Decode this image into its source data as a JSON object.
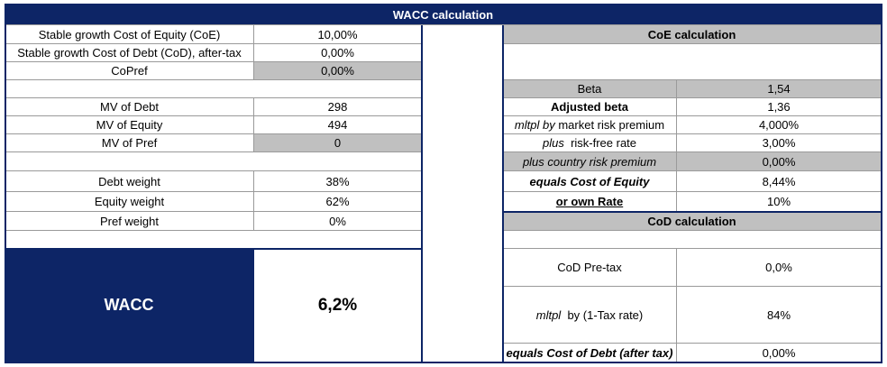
{
  "title": "WACC calculation",
  "left": {
    "rows": [
      {
        "label": "Stable growth Cost of Equity (CoE)",
        "value": "10,00%"
      },
      {
        "label": "Stable growth Cost of Debt (CoD), after-tax",
        "value": "0,00%"
      },
      {
        "label": "CoPref",
        "value": "0,00%"
      },
      {
        "label": "MV of Debt",
        "value": "298"
      },
      {
        "label": "MV of Equity",
        "value": "494"
      },
      {
        "label": "MV of Pref",
        "value": "0"
      },
      {
        "label": "Debt weight",
        "value": "38%"
      },
      {
        "label": "Equity weight",
        "value": "62%"
      },
      {
        "label": "Pref weight",
        "value": "0%"
      }
    ],
    "wacc_label": "WACC",
    "wacc_value": "6,2%"
  },
  "coe": {
    "header": "CoE calculation",
    "beta_label": "Beta",
    "beta_value": "1,54",
    "adj_beta_label": "Adjusted beta",
    "adj_beta_value": "1,36",
    "mrp_prefix": "mltpl by",
    "mrp_label": "market risk premium",
    "mrp_value": "4,000%",
    "rf_prefix": "plus",
    "rf_label": "risk-free rate",
    "rf_value": "3,00%",
    "crp_label": "plus country risk premium",
    "crp_value": "0,00%",
    "coe_label": "equals Cost of Equity",
    "coe_value": "8,44%",
    "own_label": "or own Rate",
    "own_value": "10%"
  },
  "cod": {
    "header": "CoD calculation",
    "pretax_label": "CoD Pre-tax",
    "pretax_value": "0,0%",
    "tax_prefix": "mltpl",
    "tax_label": "by (1-Tax rate)",
    "tax_value": "84%",
    "cod_label": "equals Cost of Debt (after tax)",
    "cod_value": "0,00%"
  }
}
